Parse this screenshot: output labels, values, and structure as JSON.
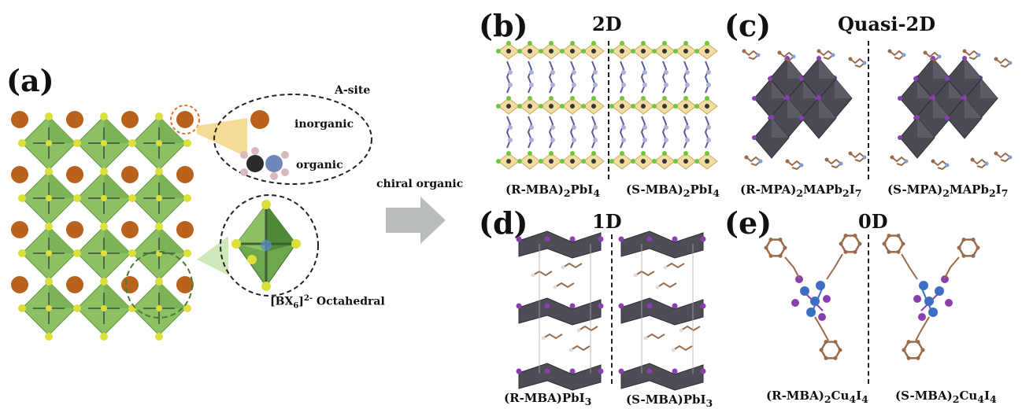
{
  "panel_a": {
    "letter": "(a)",
    "a_site": "A-site",
    "inorganic": "inorganic",
    "organic": "organic",
    "octahedral": {
      "bx": "[BX",
      "six": "6",
      "close": "]",
      "charge": "2-",
      "word": " Octahedral"
    }
  },
  "arrow": {
    "label": "chiral organic"
  },
  "panel_b": {
    "letter": "(b)",
    "dim": "2D",
    "left": {
      "pre": "(R-MBA)",
      "s1": "2",
      "mid": "PbI",
      "s2": "4",
      "post": "",
      "s3": ""
    },
    "right": {
      "pre": "(S-MBA)",
      "s1": "2",
      "mid": "PbI",
      "s2": "4",
      "post": "",
      "s3": ""
    }
  },
  "panel_c": {
    "letter": "(c)",
    "dim": "Quasi-2D",
    "left": {
      "pre": "(R-MPA)",
      "s1": "2",
      "mid": "MAPb",
      "s2": "2",
      "post": "I",
      "s3": "7"
    },
    "right": {
      "pre": "(S-MPA)",
      "s1": "2",
      "mid": "MAPb",
      "s2": "2",
      "post": "I",
      "s3": "7"
    }
  },
  "panel_d": {
    "letter": "(d)",
    "dim": "1D",
    "left": {
      "pre": "(R-MBA)",
      "s1": "",
      "mid": "PbI",
      "s2": "3",
      "post": "",
      "s3": ""
    },
    "right": {
      "pre": "(S-MBA)",
      "s1": "",
      "mid": "PbI",
      "s2": "3",
      "post": "",
      "s3": ""
    }
  },
  "panel_e": {
    "letter": "(e)",
    "dim": "0D",
    "left": {
      "pre": "(R-MBA)",
      "s1": "2",
      "mid": "Cu",
      "s2": "4",
      "post": "I",
      "s3": "4"
    },
    "right": {
      "pre": "(S-MBA)",
      "s1": "2",
      "mid": "Cu",
      "s2": "4",
      "post": "I",
      "s3": "4"
    }
  },
  "colors": {
    "octahedron_green": "#8cc063",
    "a_site_orange": "#b8621c",
    "halide_yellow": "#dde03a",
    "pb_octahedron_gray": "#4a4a52",
    "iodide_purple": "#8a3fb0",
    "carbon_brown": "#9a6a4c",
    "cu_blue": "#3d6ec4",
    "arrow_gray": "#b9bdb9"
  },
  "icons": [
    "octahedron",
    "a-site-sphere",
    "methylammonium-molecule",
    "block-arrow"
  ]
}
